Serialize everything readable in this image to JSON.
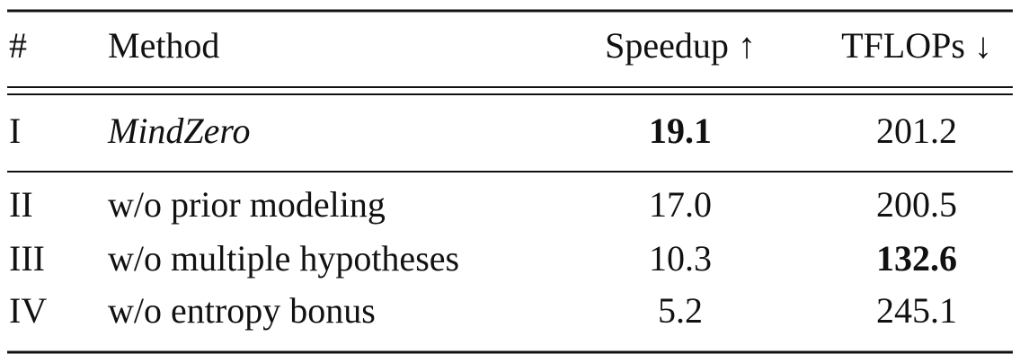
{
  "table": {
    "header": [
      "#",
      "Method",
      "Speedup ↑",
      "TFLOPs ↓"
    ],
    "rows": [
      [
        "I",
        "MindZero",
        "19.1",
        "201.2"
      ],
      [
        "II",
        "w/o prior modeling",
        "17.0",
        "200.5"
      ],
      [
        "III",
        "w/o multiple hypotheses",
        "10.3",
        "132.6"
      ],
      [
        "IV",
        "w/o entropy bonus",
        "5.2",
        "245.1"
      ]
    ]
  }
}
